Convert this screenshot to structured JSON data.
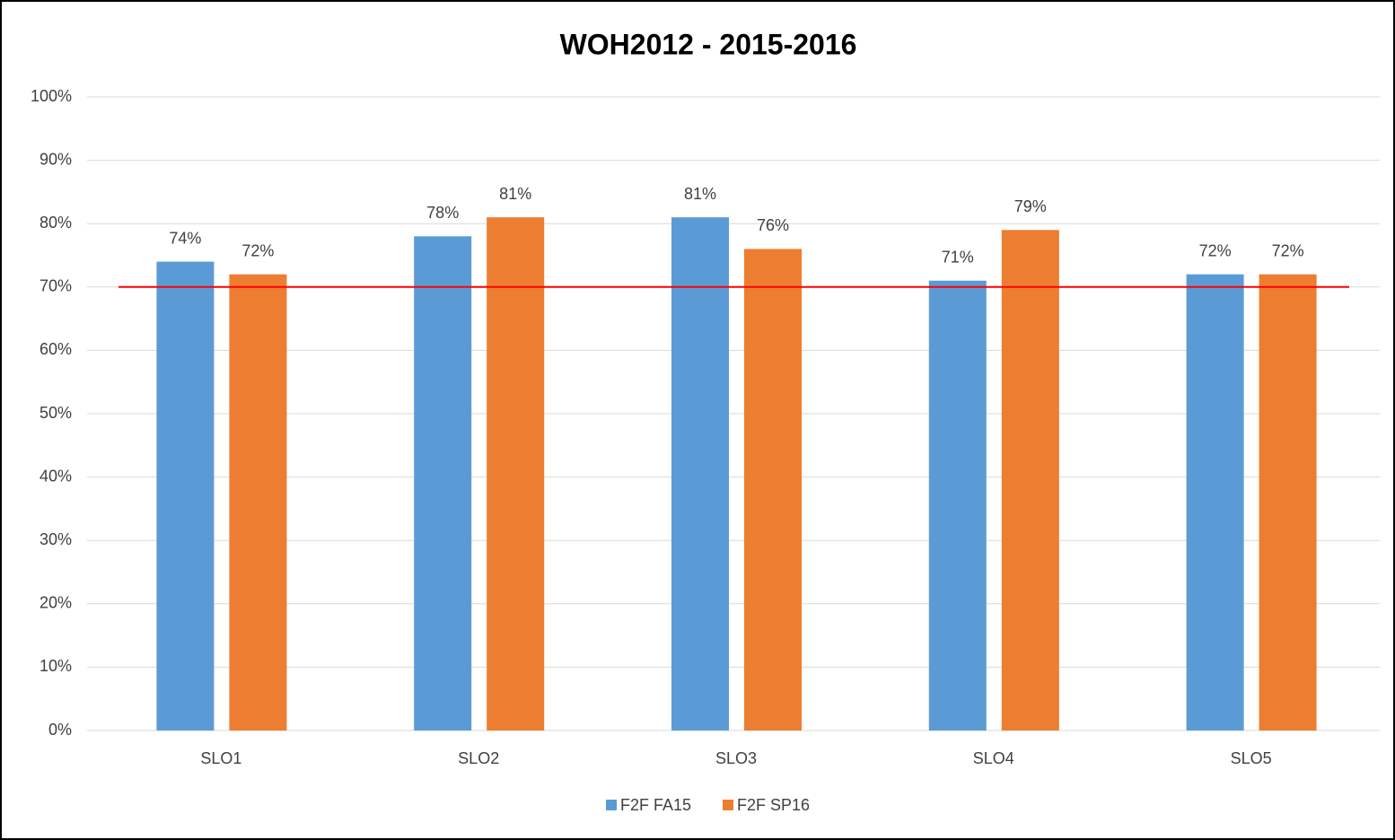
{
  "chart_data": {
    "type": "bar",
    "title": "WOH2012 - 2015-2016",
    "categories": [
      "SLO1",
      "SLO2",
      "SLO3",
      "SLO4",
      "SLO5"
    ],
    "series": [
      {
        "name": "F2F FA15",
        "color": "#5b9bd5",
        "values": [
          74,
          78,
          81,
          71,
          72
        ],
        "value_labels": [
          "74%",
          "78%",
          "81%",
          "71%",
          "72%"
        ]
      },
      {
        "name": "F2F SP16",
        "color": "#ed7d31",
        "values": [
          72,
          81,
          76,
          79,
          72
        ],
        "value_labels": [
          "72%",
          "81%",
          "76%",
          "79%",
          "72%"
        ]
      }
    ],
    "ylim": [
      0,
      100
    ],
    "yticks": [
      {
        "value": 0,
        "label": "0%"
      },
      {
        "value": 10,
        "label": "10%"
      },
      {
        "value": 20,
        "label": "20%"
      },
      {
        "value": 30,
        "label": "30%"
      },
      {
        "value": 40,
        "label": "40%"
      },
      {
        "value": 50,
        "label": "50%"
      },
      {
        "value": 60,
        "label": "60%"
      },
      {
        "value": 70,
        "label": "70%"
      },
      {
        "value": 80,
        "label": "80%"
      },
      {
        "value": 90,
        "label": "90%"
      },
      {
        "value": 100,
        "label": "100%"
      }
    ],
    "grid": true,
    "reference_line": {
      "value": 70,
      "color": "#ff0000"
    },
    "legend": "bottom"
  }
}
